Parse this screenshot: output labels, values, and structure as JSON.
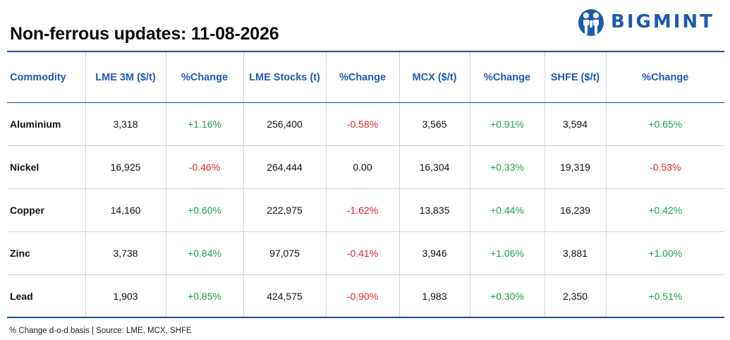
{
  "header": {
    "title": "Non-ferrous updates: 11-08-2026",
    "logo_text": "BIGMINT"
  },
  "table": {
    "columns": [
      "Commodity",
      "LME 3M ($/t)",
      "%Change",
      "LME Stocks (t)",
      "%Change",
      "MCX ($/t)",
      "%Change",
      "SHFE ($/t)",
      "%Change"
    ],
    "rows": [
      {
        "name": "Aluminium",
        "lme3m": "3,318",
        "lme3m_chg": "+1.16%",
        "stocks": "256,400",
        "stocks_chg": "-0.58%",
        "mcx": "3,565",
        "mcx_chg": "+0.91%",
        "shfe": "3,594",
        "shfe_chg": "+0.65%"
      },
      {
        "name": "Nickel",
        "lme3m": "16,925",
        "lme3m_chg": "-0.46%",
        "stocks": "264,444",
        "stocks_chg": "0.00",
        "mcx": "16,304",
        "mcx_chg": "+0.33%",
        "shfe": "19,319",
        "shfe_chg": "-0.53%"
      },
      {
        "name": "Copper",
        "lme3m": "14,160",
        "lme3m_chg": "+0.60%",
        "stocks": "222,975",
        "stocks_chg": "-1.62%",
        "mcx": "13,835",
        "mcx_chg": "+0.44%",
        "shfe": "16,239",
        "shfe_chg": "+0.42%"
      },
      {
        "name": "Zinc",
        "lme3m": "3,738",
        "lme3m_chg": "+0.84%",
        "stocks": "97,075",
        "stocks_chg": "-0.41%",
        "mcx": "3,946",
        "mcx_chg": "+1.06%",
        "shfe": "3,881",
        "shfe_chg": "+1.00%"
      },
      {
        "name": "Lead",
        "lme3m": "1,903",
        "lme3m_chg": "+0.85%",
        "stocks": "424,575",
        "stocks_chg": "-0.90%",
        "mcx": "1,983",
        "mcx_chg": "+0.30%",
        "shfe": "2,350",
        "shfe_chg": "+0.51%"
      }
    ]
  },
  "footer": {
    "note": "% Change d-o-d basis | Source: LME, MCX, SHFE"
  },
  "colors": {
    "brand_blue": "#1f5ab1",
    "positive": "#1aa04a",
    "negative": "#e0242a",
    "rule": "#1f4e8c"
  }
}
